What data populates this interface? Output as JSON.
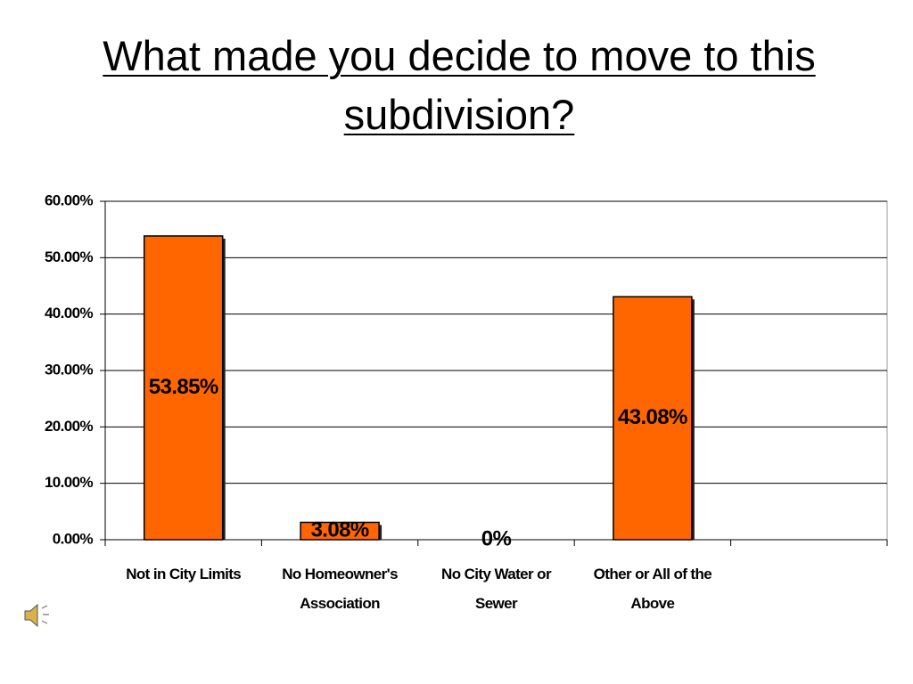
{
  "chart_data": {
    "type": "bar",
    "title": "What made you decide to move to this subdivision?",
    "categories": [
      "Not in City Limits",
      "No Homeowner's Association",
      "No City Water or Sewer",
      "Other or All of the Above",
      null
    ],
    "values": [
      53.85,
      3.08,
      0,
      43.08,
      null
    ],
    "value_labels": [
      "53.85%",
      "3.08%",
      "0%",
      "43.08%",
      null
    ],
    "color": "#ff6600",
    "ylim": [
      0,
      60
    ],
    "yticks": [
      {
        "value": 0,
        "label": "0.00%"
      },
      {
        "value": 10,
        "label": "10.00%"
      },
      {
        "value": 20,
        "label": "20.00%"
      },
      {
        "value": 30,
        "label": "30.00%"
      },
      {
        "value": 40,
        "label": "40.00%"
      },
      {
        "value": 50,
        "label": "50.00%"
      },
      {
        "value": 60,
        "label": "60.00%"
      }
    ],
    "grid": true
  }
}
